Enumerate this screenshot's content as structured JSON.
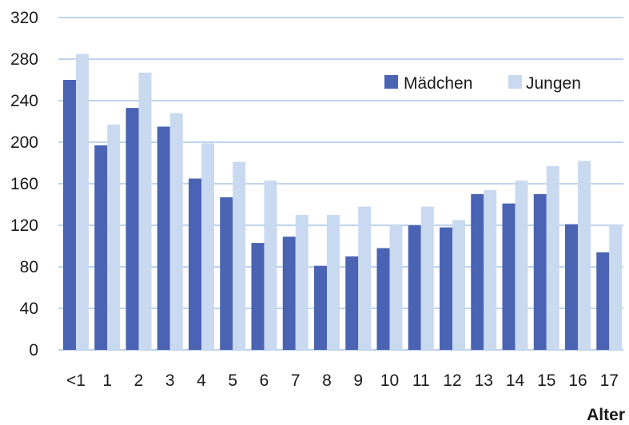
{
  "chart_data": {
    "type": "bar",
    "categories": [
      "<1",
      "1",
      "2",
      "3",
      "4",
      "5",
      "6",
      "7",
      "8",
      "9",
      "10",
      "11",
      "12",
      "13",
      "14",
      "15",
      "16",
      "17"
    ],
    "series": [
      {
        "name": "Mädchen",
        "color": "#4a63b3",
        "values": [
          260,
          197,
          233,
          215,
          165,
          147,
          103,
          109,
          81,
          90,
          98,
          120,
          118,
          150,
          141,
          150,
          121,
          94
        ]
      },
      {
        "name": "Jungen",
        "color": "#c9d9f0",
        "values": [
          285,
          217,
          267,
          228,
          199,
          181,
          163,
          130,
          130,
          138,
          120,
          138,
          125,
          154,
          163,
          177,
          182,
          120
        ]
      }
    ],
    "yticks": [
      "0",
      "40",
      "80",
      "120",
      "160",
      "200",
      "240",
      "280",
      "320"
    ],
    "ylim": [
      0,
      320
    ],
    "xlabel": "Alter",
    "ylabel": "",
    "grid": true,
    "grid_color": "#a9c6e6",
    "legend_position": "top-right"
  }
}
